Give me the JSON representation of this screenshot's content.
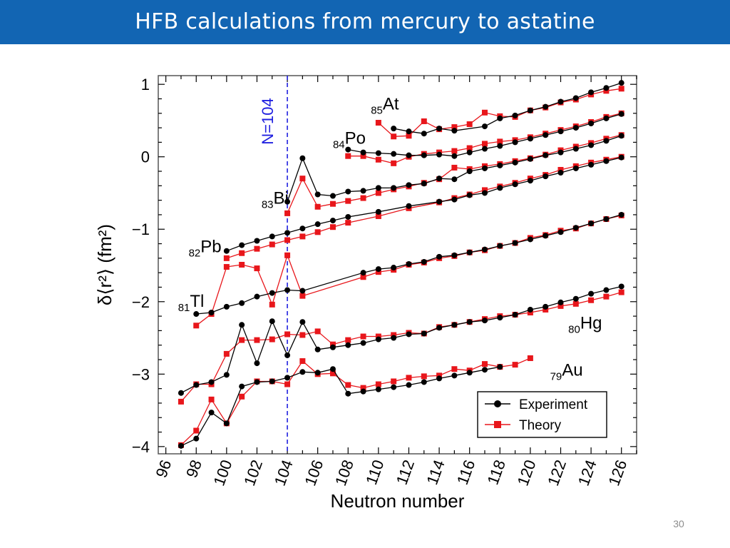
{
  "slide": {
    "title": "HFB calculations from mercury to astatine",
    "page_number": "30"
  },
  "colors": {
    "title_bar": "#1265b3",
    "experiment": "#000000",
    "theory": "#e8161b",
    "n104_line": "#2020e0"
  },
  "chart_data": {
    "type": "line",
    "title": "",
    "xlabel": "Neutron number",
    "ylabel": "δ⟨r²⟩ (fm²)",
    "xlim": [
      95.5,
      127
    ],
    "ylim": [
      -4.1,
      1.12
    ],
    "xticks": [
      96,
      98,
      100,
      102,
      104,
      106,
      108,
      110,
      112,
      114,
      116,
      118,
      120,
      122,
      124,
      126
    ],
    "yticks": [
      -4,
      -3,
      -2,
      -1,
      0,
      1
    ],
    "grid": false,
    "legend": {
      "position": "bottom-right",
      "entries": [
        {
          "label": "Experiment",
          "marker": "circle",
          "color": "#000000"
        },
        {
          "label": "Theory",
          "marker": "square",
          "color": "#e8161b"
        }
      ]
    },
    "annotations": [
      {
        "text": "N=104",
        "x": 104,
        "style": "vertical-dashed-line"
      }
    ],
    "element_labels": [
      {
        "sub": "85",
        "sym": "At",
        "x": 109.5,
        "y": 0.65
      },
      {
        "sub": "84",
        "sym": "Po",
        "x": 107.0,
        "y": 0.18
      },
      {
        "sub": "83",
        "sym": "Bi",
        "x": 102.3,
        "y": -0.65
      },
      {
        "sub": "82",
        "sym": "Pb",
        "x": 97.5,
        "y": -1.32
      },
      {
        "sub": "81",
        "sym": "Tl",
        "x": 96.8,
        "y": -2.07
      },
      {
        "sub": "80",
        "sym": "Hg",
        "x": 122.5,
        "y": -2.37
      },
      {
        "sub": "79",
        "sym": "Au",
        "x": 121.3,
        "y": -3.02
      }
    ],
    "series": [
      {
        "name": "At",
        "kind": "Experiment",
        "x": [
          111,
          112,
          113,
          114,
          115,
          117,
          118,
          119,
          120,
          121,
          122,
          123,
          124,
          125,
          126
        ],
        "y": [
          0.39,
          0.35,
          0.32,
          0.39,
          0.36,
          0.42,
          0.53,
          0.57,
          0.64,
          0.69,
          0.76,
          0.81,
          0.89,
          0.95,
          1.02
        ]
      },
      {
        "name": "At",
        "kind": "Theory",
        "x": [
          110,
          111,
          112,
          113,
          114,
          115,
          116,
          117,
          118,
          119,
          120,
          121,
          122,
          123,
          124,
          125,
          126
        ],
        "y": [
          0.47,
          0.28,
          0.29,
          0.49,
          0.38,
          0.41,
          0.45,
          0.61,
          0.56,
          0.55,
          0.64,
          0.68,
          0.75,
          0.79,
          0.86,
          0.91,
          0.94
        ]
      },
      {
        "name": "Po",
        "kind": "Experiment",
        "x": [
          108,
          109,
          110,
          111,
          112,
          113,
          114,
          115,
          116,
          117,
          118,
          119,
          120,
          121,
          122,
          123,
          124,
          125,
          126
        ],
        "y": [
          0.1,
          0.06,
          0.05,
          0.04,
          0.02,
          0.02,
          0.03,
          0.01,
          0.06,
          0.11,
          0.15,
          0.2,
          0.25,
          0.3,
          0.35,
          0.4,
          0.46,
          0.53,
          0.59
        ]
      },
      {
        "name": "Po",
        "kind": "Theory",
        "x": [
          108,
          109,
          110,
          111,
          112,
          113,
          114,
          115,
          116,
          117,
          118,
          119,
          120,
          121,
          122,
          123,
          124,
          125,
          126
        ],
        "y": [
          0.01,
          0.01,
          -0.04,
          -0.09,
          0.0,
          0.04,
          0.06,
          0.08,
          0.12,
          0.18,
          0.21,
          0.23,
          0.27,
          0.32,
          0.37,
          0.42,
          0.48,
          0.55,
          0.6
        ]
      },
      {
        "name": "Bi",
        "kind": "Experiment",
        "x": [
          104,
          105,
          106,
          107,
          108,
          109,
          110,
          111,
          112,
          113,
          114,
          115,
          116,
          117,
          118,
          119,
          120,
          121,
          122,
          123,
          124,
          125,
          126
        ],
        "y": [
          -0.62,
          -0.02,
          -0.52,
          -0.54,
          -0.48,
          -0.47,
          -0.43,
          -0.43,
          -0.39,
          -0.37,
          -0.3,
          -0.31,
          -0.2,
          -0.16,
          -0.12,
          -0.08,
          -0.03,
          0.02,
          0.06,
          0.11,
          0.16,
          0.22,
          0.29
        ]
      },
      {
        "name": "Bi",
        "kind": "Theory",
        "x": [
          104,
          105,
          106,
          107,
          108,
          109,
          110,
          111,
          112,
          113,
          114,
          115,
          116,
          117,
          118,
          119,
          120,
          121,
          122,
          123,
          124,
          125,
          126
        ],
        "y": [
          -0.78,
          -0.3,
          -0.69,
          -0.65,
          -0.61,
          -0.57,
          -0.5,
          -0.45,
          -0.41,
          -0.36,
          -0.31,
          -0.15,
          -0.17,
          -0.13,
          -0.1,
          -0.06,
          -0.02,
          0.03,
          0.09,
          0.14,
          0.19,
          0.25,
          0.3
        ]
      },
      {
        "name": "Pb",
        "kind": "Experiment",
        "x": [
          100,
          101,
          102,
          103,
          104,
          105,
          106,
          107,
          108,
          110,
          112,
          114,
          115,
          116,
          117,
          118,
          119,
          120,
          121,
          122,
          123,
          124,
          125,
          126
        ],
        "y": [
          -1.3,
          -1.22,
          -1.16,
          -1.1,
          -1.05,
          -0.99,
          -0.93,
          -0.88,
          -0.83,
          -0.76,
          -0.68,
          -0.62,
          -0.59,
          -0.53,
          -0.5,
          -0.43,
          -0.38,
          -0.33,
          -0.27,
          -0.22,
          -0.16,
          -0.11,
          -0.06,
          -0.01
        ]
      },
      {
        "name": "Pb",
        "kind": "Theory",
        "x": [
          100,
          101,
          102,
          103,
          104,
          105,
          106,
          107,
          108,
          110,
          112,
          114,
          115,
          116,
          117,
          118,
          119,
          120,
          121,
          122,
          123,
          124,
          125,
          126
        ],
        "y": [
          -1.4,
          -1.33,
          -1.27,
          -1.21,
          -1.15,
          -1.1,
          -1.04,
          -0.97,
          -0.91,
          -0.82,
          -0.71,
          -0.63,
          -0.57,
          -0.52,
          -0.46,
          -0.41,
          -0.36,
          -0.3,
          -0.25,
          -0.18,
          -0.13,
          -0.08,
          -0.04,
          0.0
        ]
      },
      {
        "name": "Tl",
        "kind": "Experiment",
        "x": [
          98,
          99,
          100,
          101,
          102,
          103,
          104,
          105,
          109,
          110,
          111,
          112,
          113,
          114,
          115,
          116,
          117,
          118,
          119,
          120,
          121,
          122,
          123,
          124,
          125,
          126
        ],
        "y": [
          -2.17,
          -2.15,
          -2.07,
          -2.02,
          -1.93,
          -1.88,
          -1.84,
          -1.85,
          -1.6,
          -1.55,
          -1.53,
          -1.48,
          -1.45,
          -1.38,
          -1.36,
          -1.32,
          -1.28,
          -1.23,
          -1.19,
          -1.14,
          -1.09,
          -1.04,
          -0.98,
          -0.92,
          -0.86,
          -0.8
        ]
      },
      {
        "name": "Tl",
        "kind": "Theory",
        "x": [
          98,
          99,
          100,
          101,
          102,
          103,
          104,
          105,
          109,
          110,
          111,
          112,
          113,
          114,
          115,
          116,
          117,
          118,
          119,
          120,
          121,
          122,
          123,
          124,
          125,
          126
        ],
        "y": [
          -2.33,
          -2.17,
          -1.52,
          -1.49,
          -1.54,
          -2.04,
          -1.36,
          -1.92,
          -1.66,
          -1.59,
          -1.56,
          -1.49,
          -1.46,
          -1.4,
          -1.37,
          -1.32,
          -1.29,
          -1.23,
          -1.19,
          -1.12,
          -1.08,
          -1.02,
          -0.99,
          -0.92,
          -0.86,
          -0.81
        ]
      },
      {
        "name": "Hg",
        "kind": "Experiment",
        "x": [
          97,
          98,
          99,
          100,
          101,
          102,
          103,
          104,
          105,
          106,
          107,
          108,
          109,
          110,
          111,
          112,
          113,
          114,
          115,
          116,
          117,
          118,
          119,
          120,
          121,
          122,
          123,
          124,
          125,
          126
        ],
        "y": [
          -3.26,
          -3.15,
          -3.11,
          -3.01,
          -2.32,
          -2.85,
          -2.27,
          -2.74,
          -2.28,
          -2.66,
          -2.63,
          -2.6,
          -2.57,
          -2.52,
          -2.5,
          -2.45,
          -2.44,
          -2.36,
          -2.32,
          -2.28,
          -2.26,
          -2.22,
          -2.18,
          -2.11,
          -2.07,
          -2.01,
          -1.96,
          -1.89,
          -1.84,
          -1.79
        ]
      },
      {
        "name": "Hg",
        "kind": "Theory",
        "x": [
          97,
          98,
          99,
          100,
          101,
          102,
          103,
          104,
          105,
          106,
          107,
          108,
          109,
          110,
          111,
          112,
          113,
          114,
          115,
          116,
          117,
          118,
          119,
          120,
          121,
          122,
          123,
          124,
          125,
          126
        ],
        "y": [
          -3.38,
          -3.14,
          -3.14,
          -2.72,
          -2.53,
          -2.53,
          -2.52,
          -2.45,
          -2.46,
          -2.41,
          -2.59,
          -2.53,
          -2.48,
          -2.48,
          -2.46,
          -2.43,
          -2.44,
          -2.35,
          -2.32,
          -2.28,
          -2.24,
          -2.2,
          -2.18,
          -2.15,
          -2.11,
          -2.06,
          -2.03,
          -1.98,
          -1.93,
          -1.87
        ]
      },
      {
        "name": "Au",
        "kind": "Experiment",
        "x": [
          97,
          98,
          99,
          100,
          101,
          102,
          103,
          104,
          105,
          106,
          107,
          108,
          109,
          110,
          111,
          112,
          113,
          114,
          115,
          116,
          117,
          118
        ],
        "y": [
          -3.99,
          -3.89,
          -3.53,
          -3.68,
          -3.17,
          -3.11,
          -3.1,
          -3.05,
          -2.97,
          -2.98,
          -2.93,
          -3.27,
          -3.24,
          -3.21,
          -3.18,
          -3.15,
          -3.11,
          -3.06,
          -3.02,
          -2.98,
          -2.94,
          -2.9
        ]
      },
      {
        "name": "Au",
        "kind": "Theory",
        "x": [
          97,
          98,
          99,
          100,
          101,
          102,
          103,
          104,
          105,
          106,
          107,
          108,
          109,
          110,
          111,
          112,
          113,
          114,
          115,
          116,
          117,
          118,
          119,
          120
        ],
        "y": [
          -3.98,
          -3.78,
          -3.35,
          -3.68,
          -3.31,
          -3.1,
          -3.1,
          -3.14,
          -2.82,
          -3.0,
          -2.99,
          -3.15,
          -3.19,
          -3.14,
          -3.1,
          -3.05,
          -3.03,
          -3.02,
          -2.93,
          -2.95,
          -2.86,
          -2.9,
          -2.87,
          -2.78
        ]
      }
    ]
  }
}
